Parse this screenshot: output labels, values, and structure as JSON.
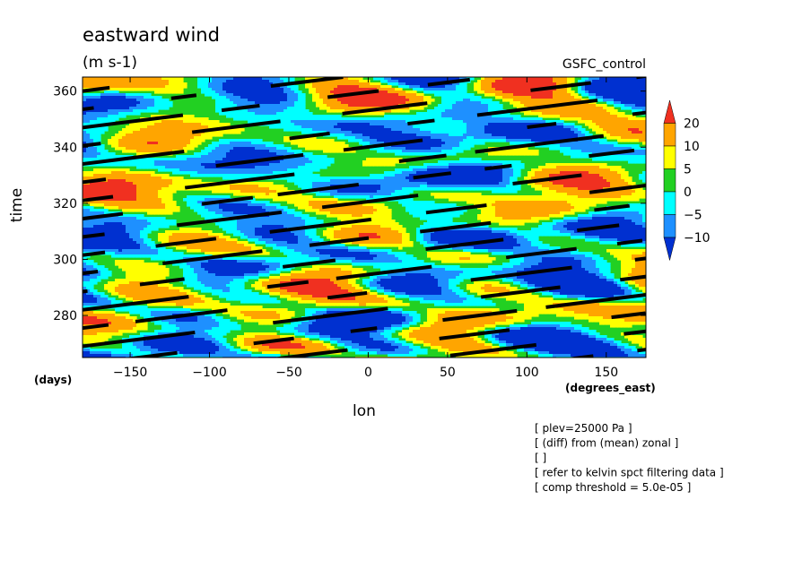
{
  "chart_data": {
    "type": "heatmap",
    "title": "eastward wind",
    "units": "(m s-1)",
    "dataset": "GSFC_control",
    "xlabel": "lon",
    "xunits": "(degrees_east)",
    "ylabel": "time",
    "yunits": "(days)",
    "xlim": [
      -180,
      175
    ],
    "ylim": [
      265,
      365
    ],
    "xticks": [
      -150,
      -100,
      -50,
      0,
      50,
      100,
      150
    ],
    "yticks": [
      280,
      300,
      320,
      340,
      360
    ],
    "colorbar": {
      "levels": [
        20,
        10,
        5,
        0,
        -5,
        -10
      ],
      "colors": [
        "#f03020",
        "#ffa500",
        "#ffff00",
        "#22d022",
        "#00ffff",
        "#1e90ff",
        "#0030d0"
      ],
      "extend": "both"
    },
    "annotations": [
      "[ plev=25000 Pa ]",
      "[ (diff) from (mean) zonal ]",
      "[  ]",
      "[ refer to kelvin spct filtering data ]",
      "[ comp threshold = 5.0e-05 ]"
    ]
  }
}
